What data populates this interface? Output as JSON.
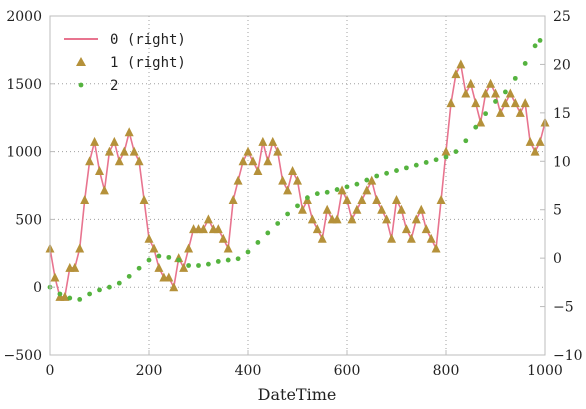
{
  "chart_data": {
    "type": "line",
    "xlabel": "DateTime",
    "ylabel": "",
    "y2label": "",
    "xlim": [
      0,
      1000
    ],
    "ylim": [
      -500,
      2000
    ],
    "y2lim": [
      -10,
      25
    ],
    "x_ticks": [
      0,
      200,
      400,
      600,
      800,
      1000
    ],
    "y_ticks": [
      -500,
      0,
      500,
      1000,
      1500,
      2000
    ],
    "y2_ticks": [
      -10,
      -5,
      0,
      5,
      10,
      15,
      20,
      25
    ],
    "grid": true,
    "legend_position": "top-left",
    "series": [
      {
        "name": "0 (right)",
        "axis": "right",
        "style": "line",
        "color": "#e8748f",
        "points": [
          [
            0,
            1
          ],
          [
            10,
            -2
          ],
          [
            20,
            -4
          ],
          [
            30,
            -4
          ],
          [
            40,
            -1
          ],
          [
            50,
            -1
          ],
          [
            60,
            1
          ],
          [
            70,
            6
          ],
          [
            80,
            10
          ],
          [
            90,
            12
          ],
          [
            100,
            9
          ],
          [
            110,
            7
          ],
          [
            120,
            11
          ],
          [
            130,
            12
          ],
          [
            140,
            10
          ],
          [
            150,
            11
          ],
          [
            160,
            13
          ],
          [
            170,
            11
          ],
          [
            180,
            10
          ],
          [
            190,
            6
          ],
          [
            200,
            2
          ],
          [
            210,
            1
          ],
          [
            220,
            -1
          ],
          [
            230,
            -2
          ],
          [
            240,
            -2
          ],
          [
            250,
            -3
          ],
          [
            260,
            0
          ],
          [
            270,
            -1
          ],
          [
            280,
            1
          ],
          [
            290,
            3
          ],
          [
            300,
            3
          ],
          [
            310,
            3
          ],
          [
            320,
            4
          ],
          [
            330,
            3
          ],
          [
            340,
            3
          ],
          [
            350,
            2
          ],
          [
            360,
            1
          ],
          [
            370,
            6
          ],
          [
            380,
            8
          ],
          [
            390,
            10
          ],
          [
            400,
            11
          ],
          [
            410,
            10
          ],
          [
            420,
            9
          ],
          [
            430,
            12
          ],
          [
            440,
            10
          ],
          [
            450,
            12
          ],
          [
            460,
            11
          ],
          [
            470,
            8
          ],
          [
            480,
            7
          ],
          [
            490,
            9
          ],
          [
            500,
            8
          ],
          [
            510,
            5
          ],
          [
            520,
            6
          ],
          [
            530,
            4
          ],
          [
            540,
            3
          ],
          [
            550,
            2
          ],
          [
            560,
            5
          ],
          [
            570,
            4
          ],
          [
            580,
            4
          ],
          [
            590,
            7
          ],
          [
            600,
            6
          ],
          [
            610,
            4
          ],
          [
            620,
            5
          ],
          [
            630,
            6
          ],
          [
            640,
            7
          ],
          [
            650,
            8
          ],
          [
            660,
            6
          ],
          [
            670,
            5
          ],
          [
            680,
            4
          ],
          [
            690,
            2
          ],
          [
            700,
            6
          ],
          [
            710,
            5
          ],
          [
            720,
            3
          ],
          [
            730,
            2
          ],
          [
            740,
            4
          ],
          [
            750,
            5
          ],
          [
            760,
            3
          ],
          [
            770,
            2
          ],
          [
            780,
            1
          ],
          [
            790,
            6
          ],
          [
            800,
            11
          ],
          [
            810,
            16
          ],
          [
            820,
            19
          ],
          [
            830,
            20
          ],
          [
            840,
            17
          ],
          [
            850,
            18
          ],
          [
            860,
            16
          ],
          [
            870,
            14
          ],
          [
            880,
            17
          ],
          [
            890,
            18
          ],
          [
            900,
            17
          ],
          [
            910,
            15
          ],
          [
            920,
            16
          ],
          [
            930,
            17
          ],
          [
            940,
            16
          ],
          [
            950,
            15
          ],
          [
            960,
            16
          ],
          [
            970,
            12
          ],
          [
            980,
            11
          ],
          [
            990,
            12
          ],
          [
            1000,
            14
          ]
        ]
      },
      {
        "name": "1 (right)",
        "axis": "right",
        "style": "triangle-markers",
        "color": "#b5913a",
        "points": [
          [
            0,
            1
          ],
          [
            10,
            -2
          ],
          [
            20,
            -4
          ],
          [
            30,
            -4
          ],
          [
            40,
            -1
          ],
          [
            50,
            -1
          ],
          [
            60,
            1
          ],
          [
            70,
            6
          ],
          [
            80,
            10
          ],
          [
            90,
            12
          ],
          [
            100,
            9
          ],
          [
            110,
            7
          ],
          [
            120,
            11
          ],
          [
            130,
            12
          ],
          [
            140,
            10
          ],
          [
            150,
            11
          ],
          [
            160,
            13
          ],
          [
            170,
            11
          ],
          [
            180,
            10
          ],
          [
            190,
            6
          ],
          [
            200,
            2
          ],
          [
            210,
            1
          ],
          [
            220,
            -1
          ],
          [
            230,
            -2
          ],
          [
            240,
            -2
          ],
          [
            250,
            -3
          ],
          [
            260,
            0
          ],
          [
            270,
            -1
          ],
          [
            280,
            1
          ],
          [
            290,
            3
          ],
          [
            300,
            3
          ],
          [
            310,
            3
          ],
          [
            320,
            4
          ],
          [
            330,
            3
          ],
          [
            340,
            3
          ],
          [
            350,
            2
          ],
          [
            360,
            1
          ],
          [
            370,
            6
          ],
          [
            380,
            8
          ],
          [
            390,
            10
          ],
          [
            400,
            11
          ],
          [
            410,
            10
          ],
          [
            420,
            9
          ],
          [
            430,
            12
          ],
          [
            440,
            10
          ],
          [
            450,
            12
          ],
          [
            460,
            11
          ],
          [
            470,
            8
          ],
          [
            480,
            7
          ],
          [
            490,
            9
          ],
          [
            500,
            8
          ],
          [
            510,
            5
          ],
          [
            520,
            6
          ],
          [
            530,
            4
          ],
          [
            540,
            3
          ],
          [
            550,
            2
          ],
          [
            560,
            5
          ],
          [
            570,
            4
          ],
          [
            580,
            4
          ],
          [
            590,
            7
          ],
          [
            600,
            6
          ],
          [
            610,
            4
          ],
          [
            620,
            5
          ],
          [
            630,
            6
          ],
          [
            640,
            7
          ],
          [
            650,
            8
          ],
          [
            660,
            6
          ],
          [
            670,
            5
          ],
          [
            680,
            4
          ],
          [
            690,
            2
          ],
          [
            700,
            6
          ],
          [
            710,
            5
          ],
          [
            720,
            3
          ],
          [
            730,
            2
          ],
          [
            740,
            4
          ],
          [
            750,
            5
          ],
          [
            760,
            3
          ],
          [
            770,
            2
          ],
          [
            780,
            1
          ],
          [
            790,
            6
          ],
          [
            800,
            11
          ],
          [
            810,
            16
          ],
          [
            820,
            19
          ],
          [
            830,
            20
          ],
          [
            840,
            17
          ],
          [
            850,
            18
          ],
          [
            860,
            16
          ],
          [
            870,
            14
          ],
          [
            880,
            17
          ],
          [
            890,
            18
          ],
          [
            900,
            17
          ],
          [
            910,
            15
          ],
          [
            920,
            16
          ],
          [
            930,
            17
          ],
          [
            940,
            16
          ],
          [
            950,
            15
          ],
          [
            960,
            16
          ],
          [
            970,
            12
          ],
          [
            980,
            11
          ],
          [
            990,
            12
          ],
          [
            1000,
            14
          ]
        ]
      },
      {
        "name": "2",
        "axis": "left",
        "style": "dots",
        "color": "#55b33f",
        "points": [
          [
            0,
            0
          ],
          [
            20,
            -50
          ],
          [
            40,
            -80
          ],
          [
            60,
            -90
          ],
          [
            80,
            -50
          ],
          [
            100,
            -20
          ],
          [
            120,
            0
          ],
          [
            140,
            30
          ],
          [
            160,
            80
          ],
          [
            180,
            140
          ],
          [
            200,
            200
          ],
          [
            220,
            230
          ],
          [
            240,
            220
          ],
          [
            260,
            200
          ],
          [
            280,
            160
          ],
          [
            300,
            160
          ],
          [
            320,
            170
          ],
          [
            340,
            190
          ],
          [
            360,
            200
          ],
          [
            380,
            210
          ],
          [
            400,
            260
          ],
          [
            420,
            330
          ],
          [
            440,
            400
          ],
          [
            460,
            470
          ],
          [
            480,
            540
          ],
          [
            500,
            600
          ],
          [
            520,
            660
          ],
          [
            540,
            690
          ],
          [
            560,
            700
          ],
          [
            580,
            720
          ],
          [
            600,
            740
          ],
          [
            620,
            760
          ],
          [
            640,
            790
          ],
          [
            660,
            820
          ],
          [
            680,
            840
          ],
          [
            700,
            860
          ],
          [
            720,
            880
          ],
          [
            740,
            900
          ],
          [
            760,
            920
          ],
          [
            780,
            940
          ],
          [
            800,
            960
          ],
          [
            820,
            1000
          ],
          [
            840,
            1080
          ],
          [
            860,
            1180
          ],
          [
            880,
            1280
          ],
          [
            900,
            1370
          ],
          [
            920,
            1440
          ],
          [
            940,
            1540
          ],
          [
            960,
            1650
          ],
          [
            980,
            1780
          ],
          [
            990,
            1820
          ]
        ]
      }
    ]
  }
}
